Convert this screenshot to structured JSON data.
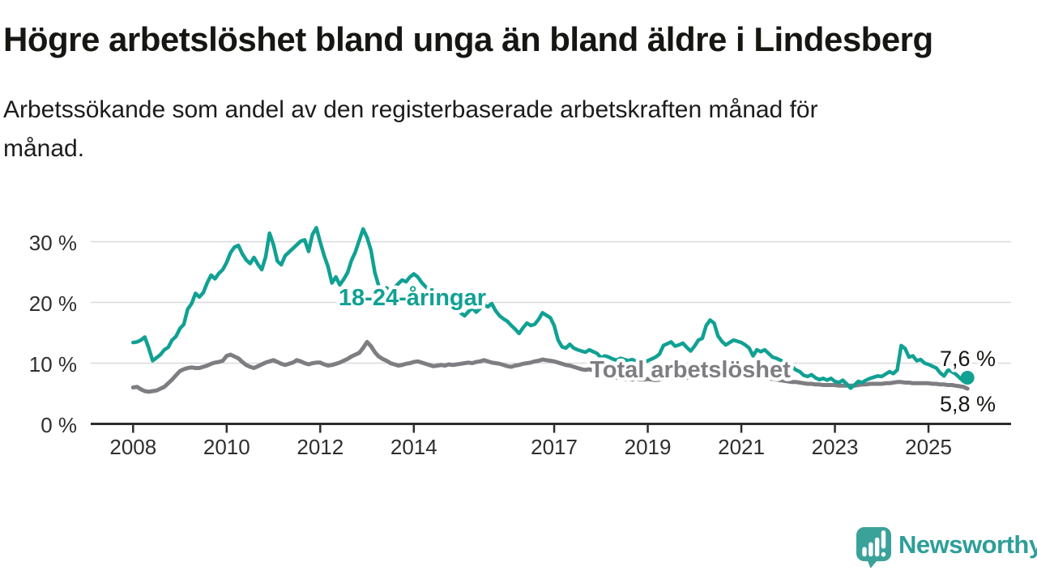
{
  "header": {
    "title": "Högre arbetslöshet bland unga än bland äldre i Lindesberg",
    "subtitle_line1": "Arbetssökande som andel av den registerbaserade arbetskraften månad för",
    "subtitle_line2": "månad.",
    "subtitle_full": "Arbetssökande som andel av den registerbaserade arbetskraften månad för månad."
  },
  "chart_data": {
    "type": "line",
    "title": "Högre arbetslöshet bland unga än bland äldre i Lindesberg",
    "unit": "%",
    "frequency": "monthly",
    "x_start": "2008-01",
    "x_end": "2025-11",
    "x_ticks": [
      2008,
      2010,
      2012,
      2014,
      2017,
      2019,
      2021,
      2023,
      2025
    ],
    "y_ticks": [
      0,
      10,
      20,
      30
    ],
    "y_tick_labels": [
      "0 %",
      "10 %",
      "20 %",
      "30 %"
    ],
    "ylim": [
      0,
      33
    ],
    "grid": "horizontal",
    "legend_position": "inline-labels",
    "colors": {
      "youth": "#10a193",
      "total": "#7e7d81",
      "grid": "#d9d9d9",
      "axis": "#2d2d2d",
      "annotation_text": "#161613"
    },
    "series": [
      {
        "id": "youth",
        "label": "18-24-åringar",
        "end_label": "7,6 %",
        "end_value": 7.6,
        "color": "#10a193",
        "values": [
          13.4,
          13.5,
          13.8,
          14.3,
          12.5,
          10.4,
          10.9,
          11.4,
          12.2,
          12.6,
          13.8,
          14.4,
          15.7,
          16.4,
          18.9,
          19.8,
          21.5,
          20.9,
          21.6,
          23.2,
          24.5,
          23.9,
          24.8,
          25.4,
          26.6,
          28.2,
          29.1,
          29.4,
          28.0,
          27.0,
          26.4,
          27.4,
          26.3,
          25.4,
          27.5,
          31.4,
          29.5,
          26.8,
          26.2,
          27.7,
          28.3,
          28.9,
          29.5,
          30.1,
          30.3,
          28.4,
          31.2,
          32.3,
          29.9,
          27.7,
          25.9,
          23.2,
          24.2,
          22.9,
          23.8,
          24.9,
          26.9,
          28.3,
          30.2,
          32.1,
          30.7,
          28.6,
          24.9,
          22.7,
          22.0,
          22.4,
          21.8,
          22.4,
          23.1,
          23.7,
          23.4,
          24.2,
          24.7,
          24.2,
          23.3,
          22.6,
          22.1,
          21.5,
          21.0,
          20.6,
          20.2,
          19.8,
          19.5,
          19.2,
          18.3,
          17.8,
          18.5,
          19.1,
          18.4,
          19.0,
          19.6,
          19.3,
          19.8,
          18.6,
          17.8,
          17.3,
          16.9,
          16.2,
          15.6,
          14.9,
          15.8,
          16.6,
          16.2,
          16.4,
          17.2,
          18.3,
          17.9,
          17.5,
          16.2,
          13.8,
          12.7,
          12.5,
          13.1,
          12.5,
          12.2,
          12.0,
          11.8,
          12.2,
          11.9,
          11.6,
          10.9,
          11.2,
          11.0,
          10.7,
          10.5,
          10.8,
          10.6,
          10.4,
          10.6,
          10.3,
          10.5,
          10.2,
          10.4,
          10.7,
          11.0,
          11.5,
          12.9,
          13.2,
          13.5,
          12.8,
          13.0,
          13.3,
          12.6,
          12.0,
          12.8,
          13.8,
          14.1,
          16.2,
          17.1,
          16.6,
          14.5,
          13.6,
          13.0,
          13.4,
          13.8,
          13.6,
          13.4,
          13.0,
          12.5,
          11.2,
          12.2,
          11.9,
          12.2,
          11.6,
          11.0,
          10.8,
          10.5,
          10.2,
          9.8,
          9.4,
          8.9,
          8.6,
          8.0,
          7.8,
          8.1,
          7.6,
          7.3,
          7.5,
          7.2,
          7.5,
          7.0,
          6.8,
          7.2,
          6.6,
          5.9,
          6.4,
          7.0,
          6.8,
          7.2,
          7.5,
          7.7,
          7.9,
          7.8,
          8.2,
          8.6,
          8.3,
          8.9,
          12.9,
          12.4,
          11.0,
          11.2,
          10.4,
          10.6,
          10.0,
          9.8,
          9.5,
          9.2,
          8.4,
          7.9,
          8.9,
          8.6,
          8.2,
          7.6,
          7.0,
          7.6
        ]
      },
      {
        "id": "total",
        "label": "Total arbetslöshet",
        "end_label": "5,8 %",
        "end_value": 5.8,
        "color": "#7e7d81",
        "values": [
          6.0,
          6.1,
          5.7,
          5.4,
          5.3,
          5.4,
          5.5,
          5.8,
          6.1,
          6.7,
          7.3,
          8.0,
          8.7,
          9.0,
          9.2,
          9.3,
          9.2,
          9.2,
          9.4,
          9.6,
          9.9,
          10.1,
          10.2,
          10.4,
          11.2,
          11.4,
          11.1,
          10.8,
          10.2,
          9.7,
          9.4,
          9.2,
          9.5,
          9.8,
          10.1,
          10.3,
          10.5,
          10.2,
          9.9,
          9.7,
          9.9,
          10.1,
          10.5,
          10.3,
          10.0,
          9.8,
          10.0,
          10.1,
          10.1,
          9.8,
          9.6,
          9.7,
          9.9,
          10.1,
          10.4,
          10.7,
          11.1,
          11.4,
          11.7,
          12.5,
          13.5,
          12.8,
          11.8,
          11.1,
          10.7,
          10.4,
          10.0,
          9.8,
          9.6,
          9.7,
          9.9,
          10.0,
          10.2,
          10.3,
          10.1,
          9.9,
          9.7,
          9.5,
          9.6,
          9.7,
          9.6,
          9.8,
          9.7,
          9.8,
          9.9,
          10.0,
          10.1,
          10.0,
          10.2,
          10.3,
          10.5,
          10.3,
          10.1,
          10.0,
          9.9,
          9.7,
          9.5,
          9.4,
          9.6,
          9.7,
          9.9,
          10.0,
          10.1,
          10.3,
          10.4,
          10.6,
          10.5,
          10.4,
          10.3,
          10.1,
          9.9,
          9.7,
          9.6,
          9.4,
          9.2,
          9.0,
          8.9,
          9.0,
          8.8,
          8.6,
          8.3,
          8.1,
          7.9,
          7.7,
          7.6,
          7.5,
          7.4,
          7.4,
          7.3,
          7.4,
          7.3,
          7.3,
          7.4,
          7.3,
          7.2,
          7.3,
          7.4,
          7.5,
          7.6,
          7.5,
          7.6,
          7.7,
          7.6,
          7.7,
          7.8,
          7.9,
          8.1,
          8.5,
          8.7,
          8.8,
          8.9,
          8.8,
          8.7,
          8.5,
          8.4,
          8.3,
          8.2,
          8.1,
          8.0,
          7.9,
          7.8,
          7.7,
          7.6,
          7.5,
          7.4,
          7.3,
          7.2,
          7.1,
          7.0,
          6.9,
          6.9,
          6.8,
          6.7,
          6.6,
          6.6,
          6.5,
          6.5,
          6.4,
          6.4,
          6.4,
          6.4,
          6.3,
          6.3,
          6.3,
          6.3,
          6.3,
          6.4,
          6.5,
          6.5,
          6.6,
          6.6,
          6.6,
          6.6,
          6.7,
          6.7,
          6.8,
          6.9,
          6.9,
          6.8,
          6.8,
          6.7,
          6.7,
          6.7,
          6.7,
          6.7,
          6.6,
          6.6,
          6.5,
          6.5,
          6.4,
          6.4,
          6.3,
          6.2,
          6.1,
          5.8
        ]
      }
    ]
  },
  "branding": {
    "logo_text": "Newsworthy",
    "logo_icon": "bar-chart-speech-bubble",
    "logo_text_color": "#2e9e99",
    "logo_icon_color": "#3ba29a"
  }
}
